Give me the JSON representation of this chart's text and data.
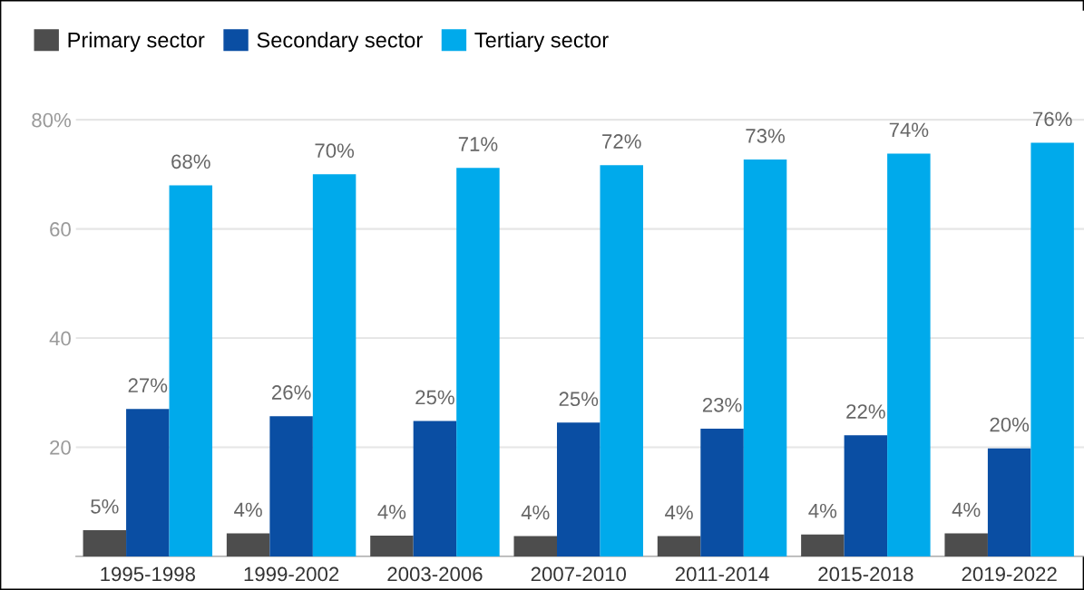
{
  "chart_data": {
    "type": "bar",
    "categories": [
      "1995-1998",
      "1999-2002",
      "2003-2006",
      "2007-2010",
      "2011-2014",
      "2015-2018",
      "2019-2022"
    ],
    "series": [
      {
        "name": "Primary sector",
        "color": "#4d4d4d",
        "values": [
          4.8,
          4.2,
          3.8,
          3.7,
          3.7,
          4.0,
          4.2
        ],
        "value_labels": [
          "5%",
          "4%",
          "4%",
          "4%",
          "4%",
          "4%",
          "4%"
        ]
      },
      {
        "name": "Secondary sector",
        "color": "#0a4ea3",
        "values": [
          27.0,
          25.7,
          24.8,
          24.5,
          23.4,
          22.2,
          19.8
        ],
        "value_labels": [
          "27%",
          "26%",
          "25%",
          "25%",
          "23%",
          "22%",
          "20%"
        ]
      },
      {
        "name": "Tertiary sector",
        "color": "#00aaeb",
        "values": [
          68.0,
          70.0,
          71.2,
          71.7,
          72.7,
          73.8,
          75.8
        ],
        "value_labels": [
          "68%",
          "70%",
          "71%",
          "72%",
          "73%",
          "74%",
          "76%"
        ]
      }
    ],
    "ylim": [
      0,
      100
    ],
    "yticks": [
      20,
      40,
      60,
      {
        "value": 80,
        "label": "80%"
      }
    ],
    "grid": "y",
    "legend": "top left"
  }
}
